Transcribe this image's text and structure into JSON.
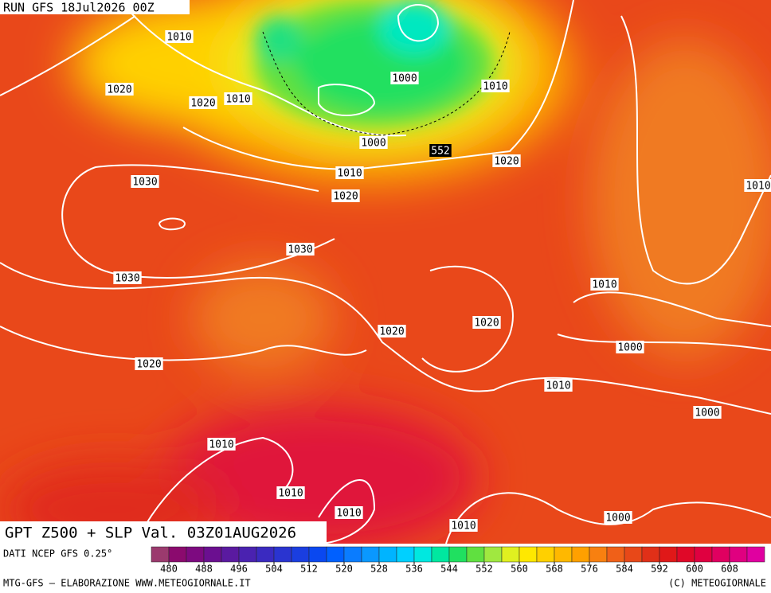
{
  "header": {
    "run": "RUN GFS 18Jul2026 00Z"
  },
  "map": {
    "title": "GPT Z500 + SLP Val. 03Z01AUG2026",
    "isobar_labels": [
      "1010",
      "1020",
      "1020",
      "1010",
      "1000",
      "1010",
      "1000",
      "552",
      "1020",
      "1010",
      "1020",
      "1030",
      "1030",
      "1030",
      "1010",
      "1020",
      "1020",
      "1000",
      "1010",
      "1020",
      "1000",
      "1010",
      "1010",
      "1010",
      "1010",
      "1000",
      "1010"
    ]
  },
  "colorbar": {
    "source": "DATI NCEP GFS 0.25°",
    "ticks": [
      480,
      488,
      496,
      504,
      512,
      520,
      528,
      536,
      544,
      552,
      560,
      568,
      576,
      584,
      592,
      600,
      608
    ],
    "colors": [
      "#9b3a6e",
      "#8b0a6e",
      "#7d0a80",
      "#6b0f90",
      "#5a1aa0",
      "#4a22b0",
      "#3a2ac0",
      "#2a34d0",
      "#1a3ee0",
      "#0a48f0",
      "#0060ff",
      "#0a7cff",
      "#0a98ff",
      "#00b4ff",
      "#00d0ff",
      "#00e8e0",
      "#00e8a0",
      "#20e060",
      "#60e040",
      "#a0e840",
      "#e0f020",
      "#ffe800",
      "#ffd000",
      "#ffb800",
      "#ffa000",
      "#f88010",
      "#f06018",
      "#e84818",
      "#e03018",
      "#e01818",
      "#e00828",
      "#e00040",
      "#e00060",
      "#e00080",
      "#e000a0"
    ]
  },
  "footer": {
    "left": "MTG-GFS — ELABORAZIONE WWW.METEOGIORNALE.IT",
    "right": "(C) METEOGIORNALE"
  }
}
